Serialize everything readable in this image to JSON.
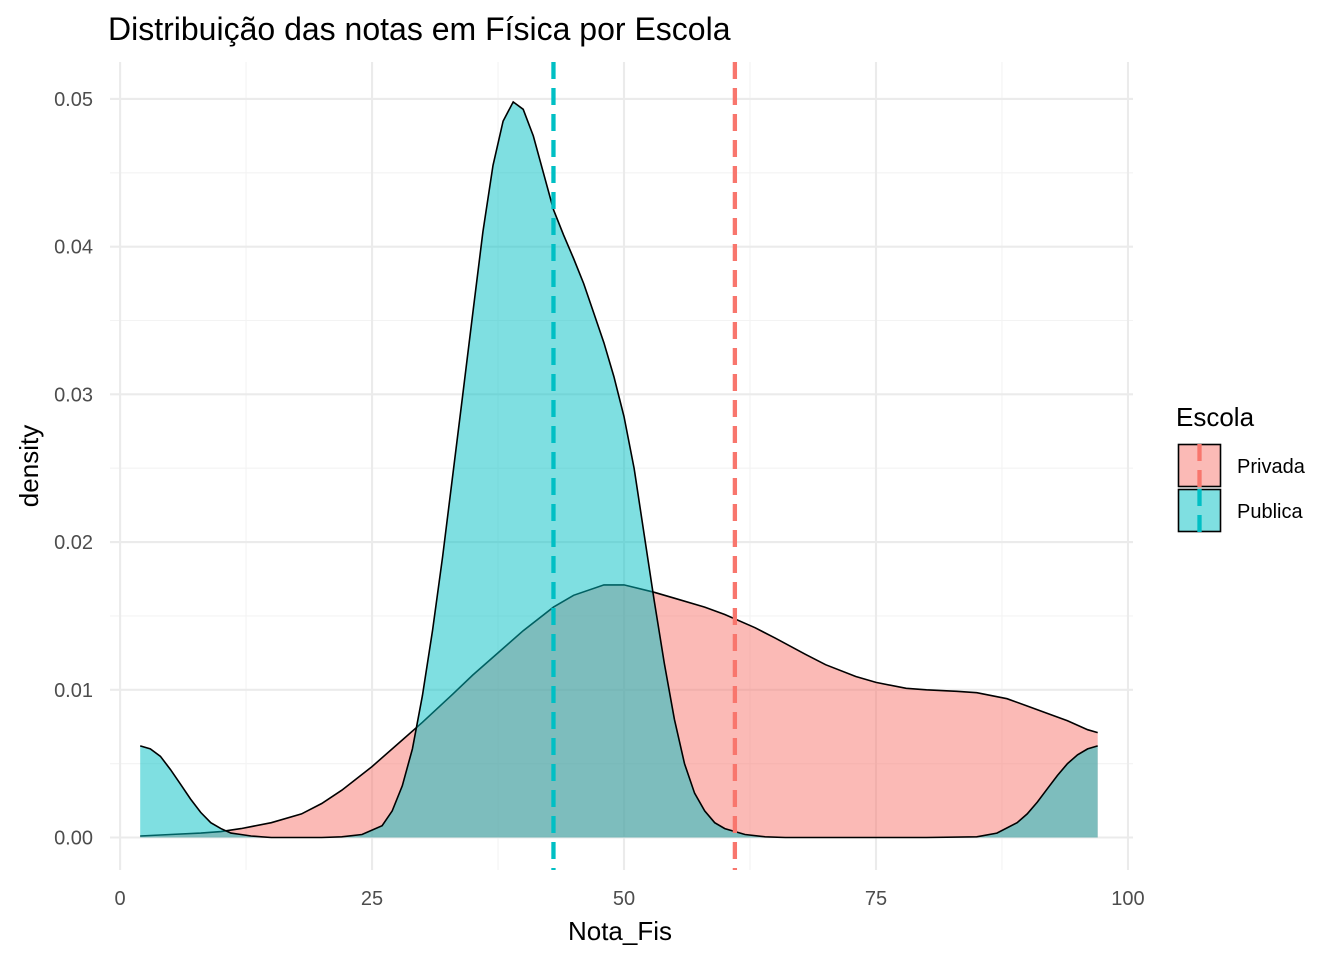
{
  "chart_data": {
    "type": "area",
    "title": "Distribuição das notas em Física por Escola",
    "xlabel": "Nota_Fis",
    "ylabel": "density",
    "xlim": [
      -1,
      100.5
    ],
    "ylim": [
      -0.0022,
      0.0525
    ],
    "x_ticks": [
      0,
      25,
      50,
      75,
      100
    ],
    "x_tick_labels": [
      "0",
      "25",
      "50",
      "75",
      "100"
    ],
    "y_ticks": [
      0.0,
      0.01,
      0.02,
      0.03,
      0.04,
      0.05
    ],
    "y_tick_labels": [
      "0.00",
      "0.01",
      "0.02",
      "0.03",
      "0.04",
      "0.05"
    ],
    "grid": true,
    "legend": {
      "title": "Escola",
      "placement": "right"
    },
    "series": [
      {
        "name": "Privada",
        "fill_color": "#F8766D",
        "fill_opacity": 0.5,
        "mean_line": 61,
        "x": [
          2,
          5,
          8,
          10,
          12,
          15,
          18,
          20,
          22,
          25,
          28,
          30,
          33,
          35,
          38,
          40,
          43,
          45,
          48,
          50,
          53,
          55,
          58,
          60,
          63,
          65,
          68,
          70,
          73,
          75,
          78,
          80,
          83,
          85,
          88,
          90,
          92,
          94,
          96,
          97
        ],
        "y": [
          0.0001,
          0.0002,
          0.0003,
          0.0004,
          0.0006,
          0.001,
          0.0016,
          0.0023,
          0.0032,
          0.0048,
          0.0066,
          0.0078,
          0.0097,
          0.011,
          0.0128,
          0.014,
          0.0156,
          0.0164,
          0.0171,
          0.0171,
          0.0166,
          0.0162,
          0.0156,
          0.0151,
          0.0142,
          0.0135,
          0.0124,
          0.0117,
          0.0109,
          0.0105,
          0.0101,
          0.01,
          0.0099,
          0.0098,
          0.0094,
          0.0089,
          0.0084,
          0.0079,
          0.0073,
          0.0071
        ]
      },
      {
        "name": "Publica",
        "fill_color": "#00BFC4",
        "fill_opacity": 0.5,
        "mean_line": 43,
        "x": [
          2,
          3,
          4,
          5,
          6,
          7,
          8,
          9,
          10,
          11,
          12,
          13,
          14,
          15,
          17,
          20,
          22,
          24,
          26,
          27,
          28,
          29,
          30,
          31,
          32,
          33,
          34,
          35,
          36,
          37,
          38,
          39,
          40,
          41,
          42,
          43,
          44,
          45,
          46,
          47,
          48,
          49,
          50,
          51,
          52,
          53,
          54,
          55,
          56,
          57,
          58,
          59,
          60,
          62,
          64,
          66,
          70,
          75,
          80,
          85,
          87,
          89,
          90,
          91,
          92,
          93,
          94,
          95,
          96,
          97
        ],
        "y": [
          0.0062,
          0.006,
          0.0055,
          0.0046,
          0.0036,
          0.0026,
          0.0017,
          0.001,
          0.0006,
          0.0003,
          0.0002,
          0.0001,
          5e-05,
          0.0,
          0.0,
          0.0,
          5e-05,
          0.0002,
          0.0008,
          0.0018,
          0.0035,
          0.006,
          0.0096,
          0.014,
          0.019,
          0.0245,
          0.03,
          0.0355,
          0.041,
          0.0455,
          0.0485,
          0.0498,
          0.0493,
          0.0475,
          0.045,
          0.0425,
          0.0408,
          0.0392,
          0.0375,
          0.0355,
          0.0335,
          0.0312,
          0.0285,
          0.025,
          0.0205,
          0.016,
          0.0118,
          0.008,
          0.005,
          0.003,
          0.0018,
          0.001,
          0.0006,
          0.0002,
          5e-05,
          0.0,
          0.0,
          0.0,
          0.0,
          5e-05,
          0.0003,
          0.001,
          0.0016,
          0.0024,
          0.0033,
          0.0042,
          0.005,
          0.0056,
          0.006,
          0.0062
        ]
      }
    ]
  }
}
